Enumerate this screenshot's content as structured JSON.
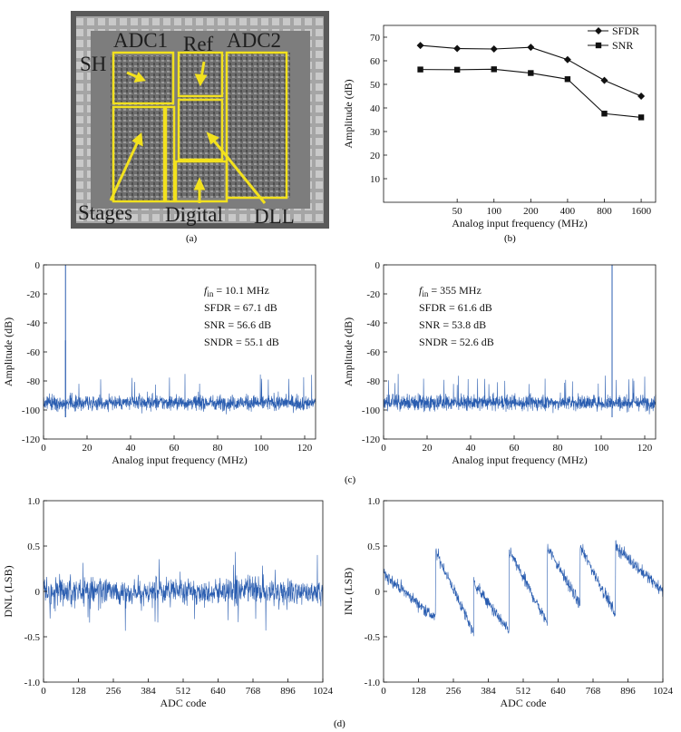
{
  "captions": {
    "a": "(a)",
    "b": "(b)",
    "c": "(c)",
    "d": "(d)"
  },
  "die_photo": {
    "labels": {
      "adc1": "ADC1",
      "ref": "Ref",
      "adc2": "ADC2",
      "sh": "SH",
      "stages": "Stages",
      "digital": "Digital",
      "dll": "DLL"
    },
    "colors": {
      "outline": "#f2e11e",
      "die": "#8a8a8a"
    }
  },
  "chart_data": [
    {
      "id": "perf_vs_freq",
      "type": "line",
      "xlabel": "Analog input frequency (MHz)",
      "ylabel": "Amplitude (dB)",
      "xticks": [
        "50",
        "100",
        "200",
        "400",
        "800",
        "1600"
      ],
      "yticks": [
        "10",
        "20",
        "30",
        "40",
        "50",
        "60",
        "70"
      ],
      "ylim": [
        0,
        75
      ],
      "x_scale": "log",
      "x": [
        25,
        50,
        100,
        200,
        400,
        800,
        1600
      ],
      "series": [
        {
          "name": "SFDR",
          "marker": "diamond",
          "values": [
            66.5,
            65.2,
            65.0,
            65.7,
            60.5,
            51.7,
            45.0
          ]
        },
        {
          "name": "SNR",
          "marker": "square",
          "values": [
            56.3,
            56.2,
            56.4,
            54.8,
            52.2,
            37.6,
            36.0
          ]
        }
      ],
      "legend": "top-right",
      "color": "#000000"
    },
    {
      "id": "spectrum_low",
      "type": "line",
      "xlabel": "Analog input frequency (MHz)",
      "ylabel": "Amplitude (dB)",
      "xticks": [
        "0",
        "20",
        "40",
        "60",
        "80",
        "100",
        "120"
      ],
      "yticks": [
        "0",
        "-20",
        "-40",
        "-60",
        "-80",
        "-100",
        "-120"
      ],
      "xlim": [
        0,
        125
      ],
      "ylim": [
        -120,
        0
      ],
      "noise_floor_db": -95,
      "tones": [
        {
          "freq": 10.1,
          "db": 0
        },
        {
          "freq": 10.1,
          "db": -52
        }
      ],
      "annotation": {
        "fin_prefix": "f",
        "fin_sub": "in",
        "fin_value": " = 10.1 MHz",
        "sfdr": "SFDR = 67.1 dB",
        "snr": "SNR = 56.6 dB",
        "sndr": "SNDR = 55.1 dB"
      },
      "color": "#2a5db0"
    },
    {
      "id": "spectrum_high",
      "type": "line",
      "xlabel": "Analog input frequency (MHz)",
      "ylabel": "Amplitude (dB)",
      "xticks": [
        "0",
        "20",
        "40",
        "60",
        "80",
        "100",
        "120"
      ],
      "yticks": [
        "0",
        "-20",
        "-40",
        "-60",
        "-80",
        "-100",
        "-120"
      ],
      "xlim": [
        0,
        125
      ],
      "ylim": [
        -120,
        0
      ],
      "noise_floor_db": -95,
      "tones": [
        {
          "freq": 105,
          "db": 0
        }
      ],
      "annotation": {
        "fin_prefix": "f",
        "fin_sub": "in",
        "fin_value": " = 355 MHz",
        "sfdr": "SFDR = 61.6 dB",
        "snr": "SNR = 53.8 dB",
        "sndr": "SNDR = 52.6 dB"
      },
      "color": "#2a5db0"
    },
    {
      "id": "dnl",
      "type": "line",
      "xlabel": "ADC code",
      "ylabel": "DNL (LSB)",
      "xticks": [
        "0",
        "128",
        "256",
        "384",
        "512",
        "640",
        "768",
        "896",
        "1024"
      ],
      "yticks": [
        "1.0",
        "0.5",
        "0",
        "-0.5",
        "-1.0"
      ],
      "xlim": [
        0,
        1024
      ],
      "ylim": [
        -1.0,
        1.0
      ],
      "noise_amplitude_lsb": 0.25,
      "color": "#2a5db0"
    },
    {
      "id": "inl",
      "type": "line",
      "xlabel": "ADC code",
      "ylabel": "INL (LSB)",
      "xticks": [
        "0",
        "128",
        "256",
        "384",
        "512",
        "640",
        "768",
        "896",
        "1024"
      ],
      "yticks": [
        "1.0",
        "0.5",
        "0",
        "-0.5",
        "-1.0"
      ],
      "xlim": [
        0,
        1024
      ],
      "ylim": [
        -1.0,
        1.0
      ],
      "sawtooth": [
        {
          "start": 0,
          "end": 190,
          "from": 0.2,
          "to": -0.3
        },
        {
          "start": 190,
          "end": 330,
          "from": 0.45,
          "to": -0.45
        },
        {
          "start": 330,
          "end": 460,
          "from": 0.1,
          "to": -0.45
        },
        {
          "start": 460,
          "end": 600,
          "from": 0.45,
          "to": -0.35
        },
        {
          "start": 600,
          "end": 720,
          "from": 0.5,
          "to": -0.15
        },
        {
          "start": 720,
          "end": 850,
          "from": 0.5,
          "to": -0.25
        },
        {
          "start": 850,
          "end": 1024,
          "from": 0.5,
          "to": 0.0
        }
      ],
      "color": "#2a5db0"
    }
  ]
}
